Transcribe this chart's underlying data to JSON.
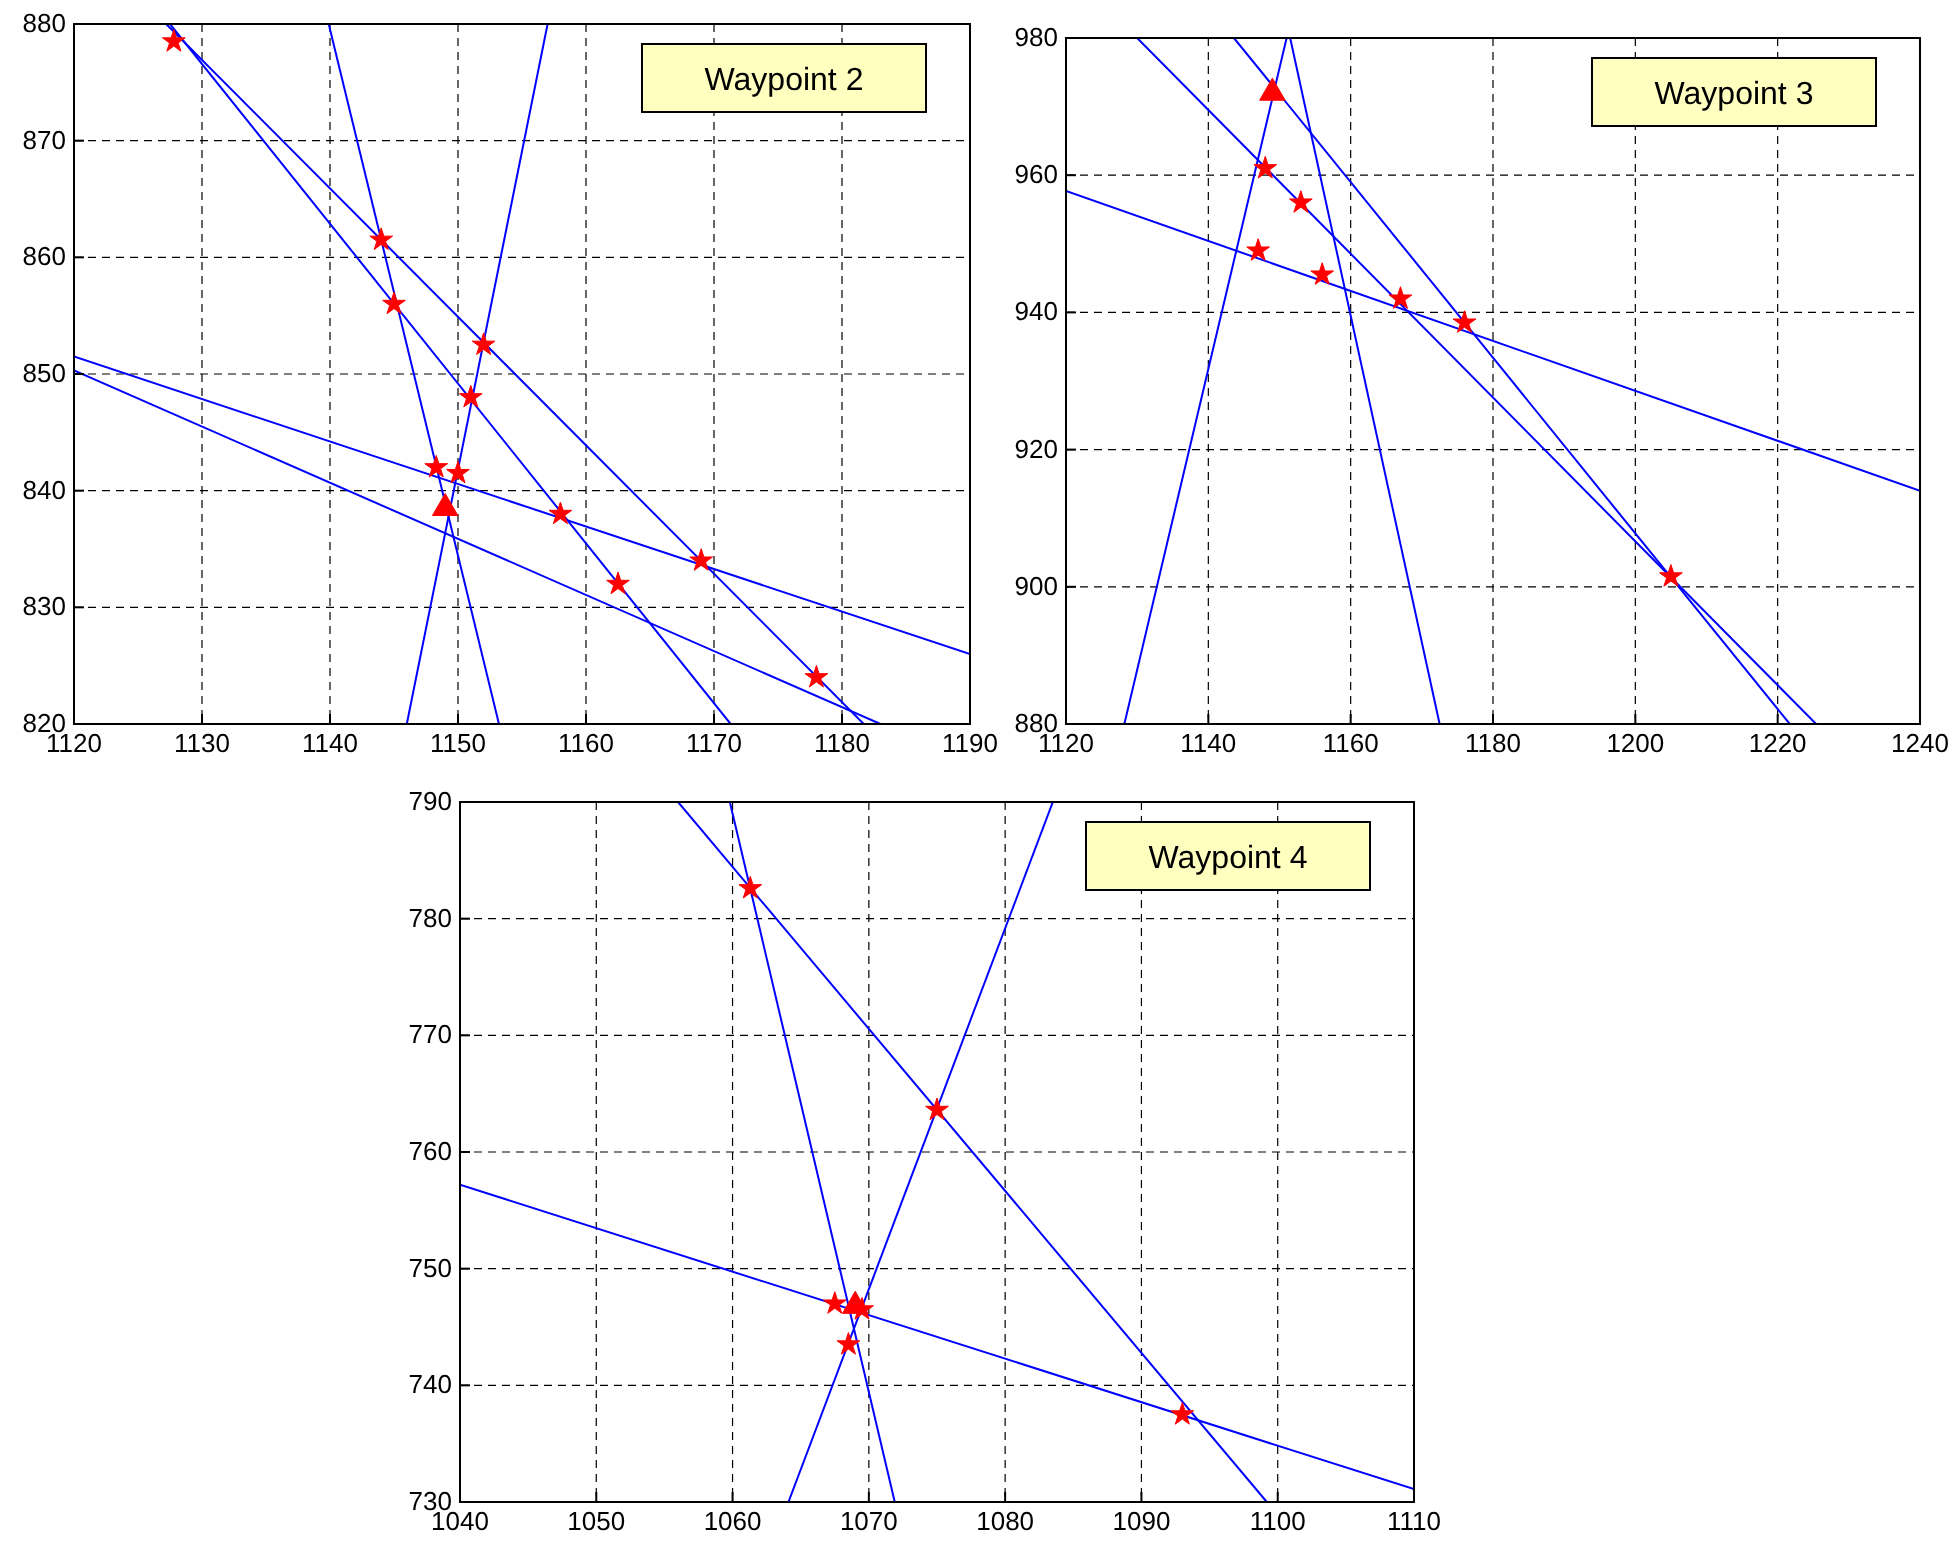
{
  "chart_data": [
    {
      "type": "line",
      "annotations": [
        "Waypoint 2"
      ],
      "xlim": [
        1120,
        1190
      ],
      "ylim": [
        820,
        880
      ],
      "xticks": [
        1120,
        1130,
        1140,
        1150,
        1160,
        1170,
        1180,
        1190
      ],
      "yticks": [
        820,
        830,
        840,
        850,
        860,
        870,
        880
      ],
      "grid": true,
      "line_style": "solid",
      "series": [
        {
          "color": "#0000ff",
          "x": [
            1139.9,
            1153.2
          ],
          "values": [
            880,
            820
          ]
        },
        {
          "color": "#0000ff",
          "x": [
            1157,
            1146
          ],
          "values": [
            880,
            820
          ]
        },
        {
          "color": "#0000ff",
          "x": [
            1127.2,
            1181.7
          ],
          "values": [
            880,
            820
          ]
        },
        {
          "color": "#0000ff",
          "x": [
            1127.5,
            1171.3
          ],
          "values": [
            880,
            820
          ]
        },
        {
          "color": "#0000ff",
          "x": [
            1120,
            1190
          ],
          "values": [
            851.5,
            826
          ]
        },
        {
          "color": "#0000ff",
          "x": [
            1120,
            1183
          ],
          "values": [
            850.3,
            820
          ]
        },
        {
          "type": "scatter",
          "marker": "star",
          "color": "#ff0000",
          "x": [
            1127.8,
            1144,
            1145,
            1152,
            1151,
            1148.3,
            1150,
            1158,
            1162.5,
            1169,
            1178
          ],
          "values": [
            878.5,
            861.5,
            856,
            852.5,
            848,
            842,
            841.5,
            838,
            832,
            834,
            824
          ]
        },
        {
          "type": "scatter",
          "marker": "triangle",
          "color": "#ff0000",
          "x": [
            1149
          ],
          "values": [
            838.5
          ]
        }
      ]
    },
    {
      "type": "line",
      "annotations": [
        "Waypoint 3"
      ],
      "xlim": [
        1120,
        1240
      ],
      "ylim": [
        880,
        980
      ],
      "xticks": [
        1120,
        1140,
        1160,
        1180,
        1200,
        1220,
        1240
      ],
      "yticks": [
        880,
        900,
        920,
        940,
        960,
        980
      ],
      "grid": true,
      "line_style": "solid",
      "series": [
        {
          "color": "#0000ff",
          "x": [
            1120,
            1240
          ],
          "values": [
            957.7,
            914
          ]
        },
        {
          "color": "#0000ff",
          "x": [
            1128.2,
            1151
          ],
          "values": [
            880,
            980
          ]
        },
        {
          "color": "#0000ff",
          "x": [
            1151.5,
            1172.5
          ],
          "values": [
            980,
            880
          ]
        },
        {
          "color": "#0000ff",
          "x": [
            1130,
            1225.4
          ],
          "values": [
            980,
            880
          ]
        },
        {
          "color": "#0000ff",
          "x": [
            1143.6,
            1221.7
          ],
          "values": [
            980,
            880
          ]
        },
        {
          "type": "scatter",
          "marker": "star",
          "color": "#ff0000",
          "x": [
            1148,
            1153,
            1147,
            1156,
            1167,
            1176,
            1205
          ],
          "values": [
            961,
            956,
            949,
            945.5,
            942,
            938.5,
            901.5
          ]
        },
        {
          "type": "scatter",
          "marker": "triangle",
          "color": "#ff0000",
          "x": [
            1149
          ],
          "values": [
            972
          ]
        }
      ]
    },
    {
      "type": "line",
      "annotations": [
        "Waypoint 4"
      ],
      "xlim": [
        1040,
        1110
      ],
      "ylim": [
        730,
        790
      ],
      "xticks": [
        1040,
        1050,
        1060,
        1070,
        1080,
        1090,
        1100,
        1110
      ],
      "yticks": [
        730,
        740,
        750,
        760,
        770,
        780,
        790
      ],
      "grid": true,
      "line_style": "solid",
      "series": [
        {
          "color": "#0000ff",
          "x": [
            1040,
            1110
          ],
          "values": [
            757.2,
            731.1
          ]
        },
        {
          "color": "#0000ff",
          "x": [
            1059.8,
            1071.9
          ],
          "values": [
            790,
            730
          ]
        },
        {
          "color": "#0000ff",
          "x": [
            1064.1,
            1083.5
          ],
          "values": [
            730,
            790
          ]
        },
        {
          "color": "#0000ff",
          "x": [
            1056,
            1099.2
          ],
          "values": [
            790,
            730
          ]
        },
        {
          "type": "scatter",
          "marker": "star",
          "color": "#ff0000",
          "x": [
            1061.3,
            1075,
            1067.5,
            1068.5,
            1093,
            1069.5
          ],
          "values": [
            782.6,
            763.6,
            747,
            743.5,
            737.5,
            746.5
          ]
        },
        {
          "type": "scatter",
          "marker": "triangle",
          "color": "#ff0000",
          "x": [
            1069
          ],
          "values": [
            746.8
          ]
        }
      ]
    }
  ]
}
